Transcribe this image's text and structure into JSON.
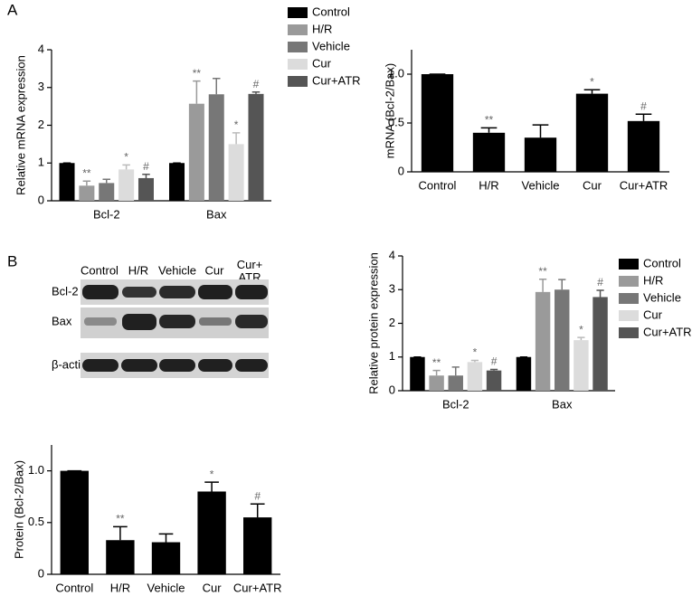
{
  "panel_labels": [
    "A",
    "B"
  ],
  "blot": {
    "columns": [
      "Control",
      "H/R",
      "Vehicle",
      "Cur",
      "Cur+\nATR"
    ],
    "rows": [
      "Bcl-2",
      "Bax",
      "β-actin"
    ]
  },
  "chart_data": [
    {
      "type": "bar",
      "ylabel": "Relative mRNA expression",
      "categories": [
        "Bcl-2",
        "Bax"
      ],
      "ylim": [
        0,
        4
      ],
      "yticks": [
        0,
        1,
        2,
        3,
        4
      ],
      "series": [
        {
          "name": "Control",
          "color": "#000000",
          "values": [
            1,
            1
          ],
          "errors": [
            0,
            0
          ],
          "annotations": [
            null,
            null
          ]
        },
        {
          "name": "H/R",
          "color": "#9a9a9a",
          "values": [
            0.4,
            2.57
          ],
          "errors": [
            0.12,
            0.6
          ],
          "annotations": [
            "**",
            "**"
          ]
        },
        {
          "name": "Vehicle",
          "color": "#777777",
          "values": [
            0.47,
            2.82
          ],
          "errors": [
            0.1,
            0.42
          ],
          "annotations": [
            null,
            null
          ]
        },
        {
          "name": "Cur",
          "color": "#dcdcdc",
          "values": [
            0.83,
            1.5
          ],
          "errors": [
            0.12,
            0.3
          ],
          "annotations": [
            "*",
            "*"
          ]
        },
        {
          "name": "Cur+ATR",
          "color": "#555555",
          "values": [
            0.6,
            2.83
          ],
          "errors": [
            0.1,
            0.05
          ],
          "annotations": [
            "#",
            "#"
          ]
        }
      ]
    },
    {
      "type": "bar",
      "ylabel": "mRNA (Bcl-2/Bax)",
      "color": "#000000",
      "categories": [
        "Control",
        "H/R",
        "Vehicle",
        "Cur",
        "Cur+ATR"
      ],
      "values": [
        1,
        0.4,
        0.35,
        0.8,
        0.52
      ],
      "errors": [
        0,
        0.05,
        0.13,
        0.04,
        0.07
      ],
      "annotations": [
        null,
        "**",
        null,
        "*",
        "#"
      ],
      "ylim": [
        0,
        1.25
      ],
      "yticks": [
        0,
        0.5,
        {
          "value": 1,
          "label": "1.0"
        }
      ]
    },
    {
      "type": "bar",
      "ylabel": "Relative protein expression",
      "categories": [
        "Bcl-2",
        "Bax"
      ],
      "ylim": [
        0,
        4
      ],
      "yticks": [
        0,
        1,
        2,
        3,
        4
      ],
      "series": [
        {
          "name": "Control",
          "color": "#000000",
          "values": [
            1,
            1
          ],
          "errors": [
            0,
            0
          ],
          "annotations": [
            null,
            null
          ]
        },
        {
          "name": "H/R",
          "color": "#9a9a9a",
          "values": [
            0.45,
            2.93
          ],
          "errors": [
            0.15,
            0.38
          ],
          "annotations": [
            "**",
            "**"
          ]
        },
        {
          "name": "Vehicle",
          "color": "#777777",
          "values": [
            0.45,
            3.0
          ],
          "errors": [
            0.25,
            0.3
          ],
          "annotations": [
            null,
            null
          ]
        },
        {
          "name": "Cur",
          "color": "#dcdcdc",
          "values": [
            0.85,
            1.5
          ],
          "errors": [
            0.05,
            0.08
          ],
          "annotations": [
            "*",
            "*"
          ]
        },
        {
          "name": "Cur+ATR",
          "color": "#555555",
          "values": [
            0.6,
            2.78
          ],
          "errors": [
            0.03,
            0.2
          ],
          "annotations": [
            "#",
            "#"
          ]
        }
      ]
    },
    {
      "type": "bar",
      "ylabel": "Protein (Bcl-2/Bax)",
      "color": "#000000",
      "categories": [
        "Control",
        "H/R",
        "Vehicle",
        "Cur",
        "Cur+ATR"
      ],
      "values": [
        1,
        0.33,
        0.31,
        0.8,
        0.55
      ],
      "errors": [
        0,
        0.13,
        0.08,
        0.09,
        0.13
      ],
      "annotations": [
        null,
        "**",
        null,
        "*",
        "#"
      ],
      "ylim": [
        0,
        1.25
      ],
      "yticks": [
        0,
        0.5,
        {
          "value": 1,
          "label": "1.0"
        }
      ]
    }
  ]
}
